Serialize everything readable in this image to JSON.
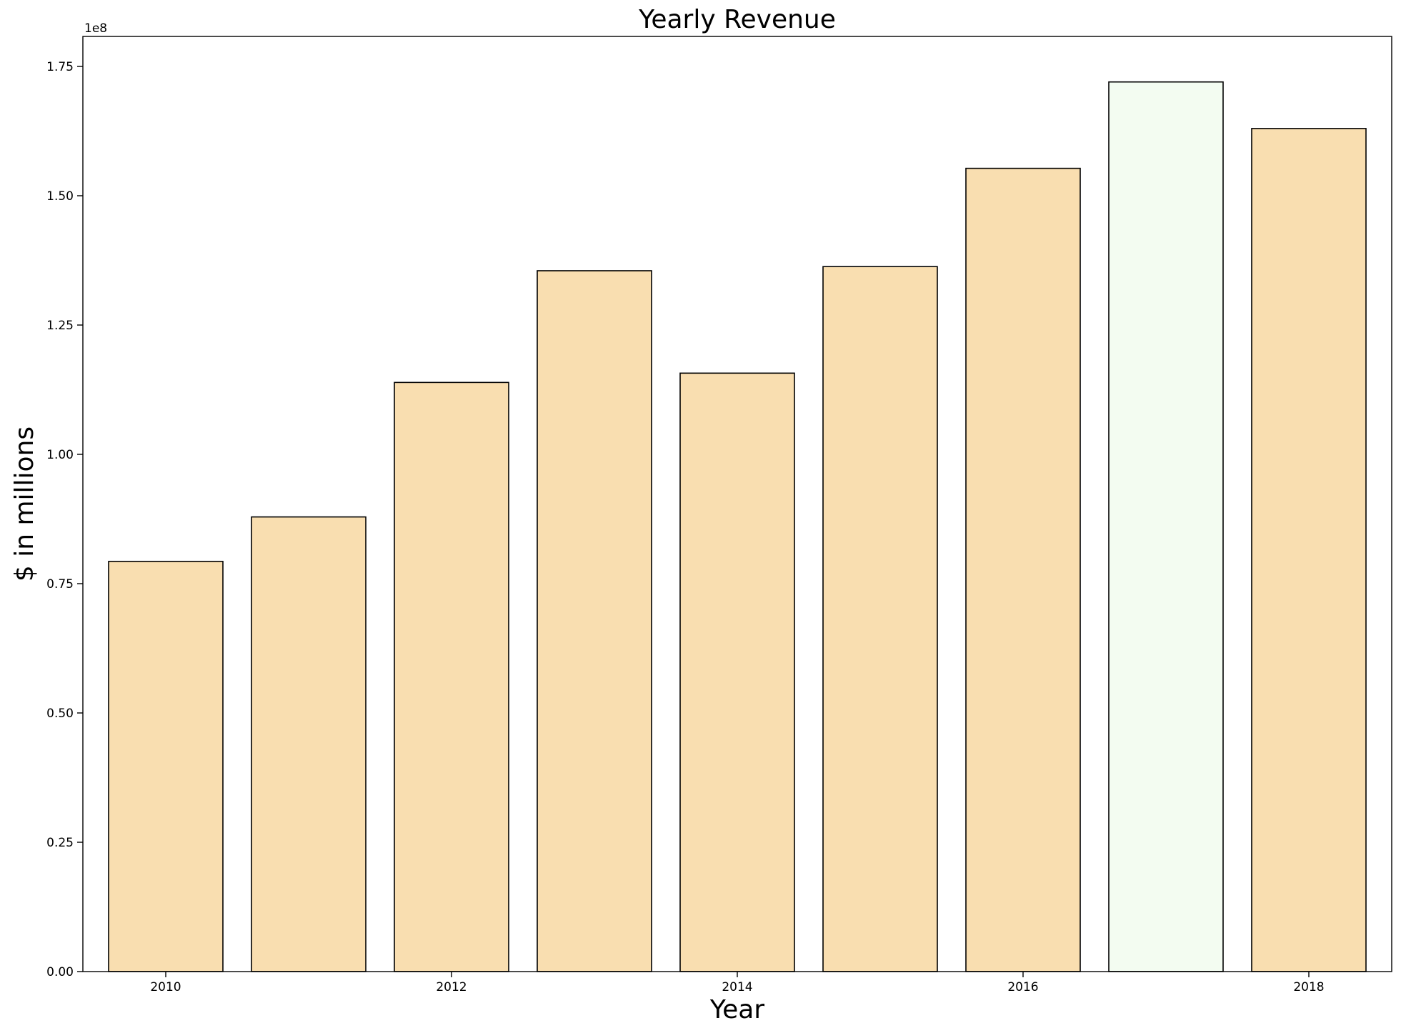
{
  "chart_data": {
    "type": "bar",
    "title": "Yearly Revenue",
    "xlabel": "Year",
    "ylabel": "$ in millions",
    "y_offset_label": "1e8",
    "categories": [
      "2010",
      "2011",
      "2012",
      "2013",
      "2014",
      "2015",
      "2016",
      "2017",
      "2018"
    ],
    "values": [
      79300000,
      87900000,
      113900000,
      135500000,
      115700000,
      136300000,
      155300000,
      172000000,
      163000000
    ],
    "bar_colors": [
      "#f9deb0",
      "#f9deb0",
      "#f9deb0",
      "#f9deb0",
      "#f9deb0",
      "#f9deb0",
      "#f9deb0",
      "#f3fcf1",
      "#f9deb0"
    ],
    "edge_color": "#000000",
    "ylim": [
      0,
      180800000
    ],
    "xlim": [
      2009.42,
      2018.58
    ],
    "yticks": [
      0,
      25000000,
      50000000,
      75000000,
      100000000,
      125000000,
      150000000,
      175000000
    ],
    "ytick_labels": [
      "0.00",
      "0.25",
      "0.50",
      "0.75",
      "1.00",
      "1.25",
      "1.50",
      "1.75"
    ],
    "xticks": [
      2010,
      2012,
      2014,
      2016,
      2018
    ],
    "xtick_labels": [
      "2010",
      "2012",
      "2014",
      "2016",
      "2018"
    ],
    "grid": false,
    "legend": "none"
  }
}
